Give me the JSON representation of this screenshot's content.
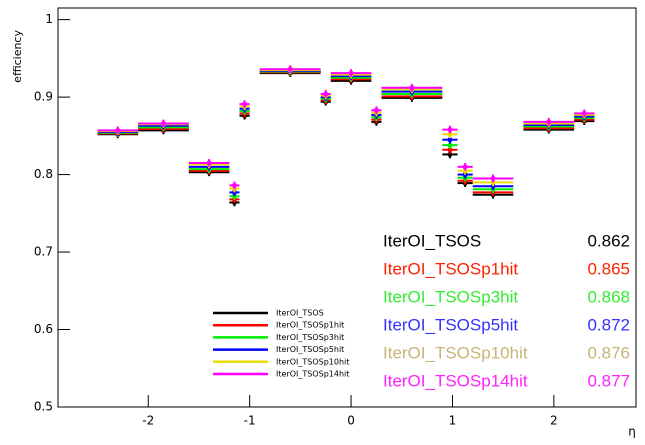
{
  "chart_data": {
    "type": "errorbar",
    "x_label": "η",
    "y_label": "efficiency",
    "xlim": [
      -2.89,
      2.81
    ],
    "ylim": [
      0.5,
      1.015
    ],
    "xticks": [
      -2,
      -1,
      0,
      1,
      2
    ],
    "yticks": [
      0.5,
      0.6,
      0.7,
      0.8,
      0.9,
      1
    ],
    "x": [
      -2.3,
      -1.85,
      -1.4,
      -1.15,
      -1.05,
      -0.6,
      -0.25,
      0,
      0.25,
      0.6,
      0.975,
      1.125,
      1.4,
      1.95,
      2.3
    ],
    "xerr": [
      0.2,
      0.25,
      0.2,
      0.05,
      0.05,
      0.3,
      0.05,
      0.2,
      0.05,
      0.3,
      0.075,
      0.075,
      0.2,
      0.25,
      0.1
    ],
    "yerr": 0.005,
    "series": [
      {
        "name": "IterOI_TSOS",
        "color": "#000000",
        "label_color": "#000000",
        "integrated_efficiency": 0.862,
        "values": [
          0.852,
          0.857,
          0.803,
          0.764,
          0.876,
          0.931,
          0.894,
          0.921,
          0.868,
          0.899,
          0.826,
          0.789,
          0.774,
          0.858,
          0.869
        ]
      },
      {
        "name": "IterOI_TSOSp1hit",
        "color": "#ff0000",
        "label_color": "#ff2200",
        "integrated_efficiency": 0.865,
        "values": [
          0.853,
          0.859,
          0.805,
          0.768,
          0.879,
          0.932,
          0.896,
          0.923,
          0.871,
          0.901,
          0.832,
          0.792,
          0.777,
          0.86,
          0.871
        ]
      },
      {
        "name": "IterOI_TSOSp3hit",
        "color": "#00ee00",
        "label_color": "#33ee33",
        "integrated_efficiency": 0.868,
        "values": [
          0.854,
          0.861,
          0.807,
          0.772,
          0.882,
          0.933,
          0.898,
          0.925,
          0.874,
          0.904,
          0.838,
          0.796,
          0.781,
          0.862,
          0.873
        ]
      },
      {
        "name": "IterOI_TSOSp5hit",
        "color": "#0000ff",
        "label_color": "#3333ff",
        "integrated_efficiency": 0.872,
        "values": [
          0.855,
          0.863,
          0.81,
          0.777,
          0.885,
          0.934,
          0.9,
          0.927,
          0.877,
          0.907,
          0.845,
          0.8,
          0.785,
          0.864,
          0.875
        ]
      },
      {
        "name": "IterOI_TSOSp10hit",
        "color": "#eedd00",
        "label_color": "#c8b478",
        "integrated_efficiency": 0.876,
        "values": [
          0.856,
          0.865,
          0.813,
          0.782,
          0.888,
          0.935,
          0.902,
          0.929,
          0.88,
          0.91,
          0.852,
          0.805,
          0.79,
          0.866,
          0.877
        ]
      },
      {
        "name": "IterOI_TSOSp14hit",
        "color": "#ff00ff",
        "label_color": "#ff22ff",
        "integrated_efficiency": 0.877,
        "values": [
          0.857,
          0.866,
          0.815,
          0.786,
          0.891,
          0.936,
          0.904,
          0.931,
          0.883,
          0.912,
          0.858,
          0.81,
          0.795,
          0.868,
          0.879
        ]
      }
    ]
  }
}
